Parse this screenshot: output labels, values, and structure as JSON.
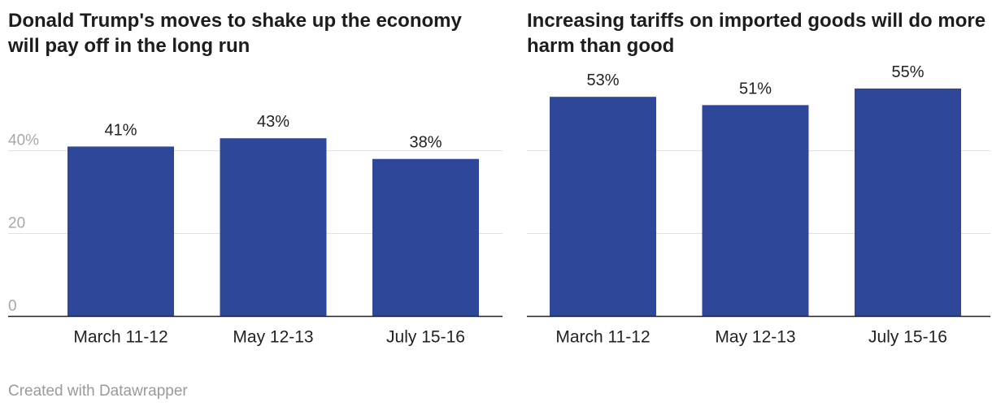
{
  "chart_data": [
    {
      "type": "bar",
      "title": "Donald Trump's moves to shake up the economy will pay off in the long run",
      "categories": [
        "March 11-12",
        "May 12-13",
        "July 15-16"
      ],
      "values": [
        41,
        43,
        38
      ],
      "value_labels": [
        "41%",
        "43%",
        "38%"
      ],
      "ylim": [
        0,
        40
      ],
      "yticks": [
        0,
        20,
        40
      ],
      "ytick_labels": [
        "0",
        "20",
        "40%"
      ],
      "grid": true,
      "bar_color": "#2f4799"
    },
    {
      "type": "bar",
      "title": "Increasing tariffs on imported goods will do more harm than good",
      "categories": [
        "March 11-12",
        "May 12-13",
        "July 15-16"
      ],
      "values": [
        53,
        51,
        55
      ],
      "value_labels": [
        "53%",
        "51%",
        "55%"
      ],
      "yticks": [
        0,
        20,
        40
      ],
      "ytick_labels": [
        "",
        "",
        ""
      ],
      "grid": true,
      "bar_color": "#2f4799"
    }
  ],
  "footer": "Created with Datawrapper"
}
